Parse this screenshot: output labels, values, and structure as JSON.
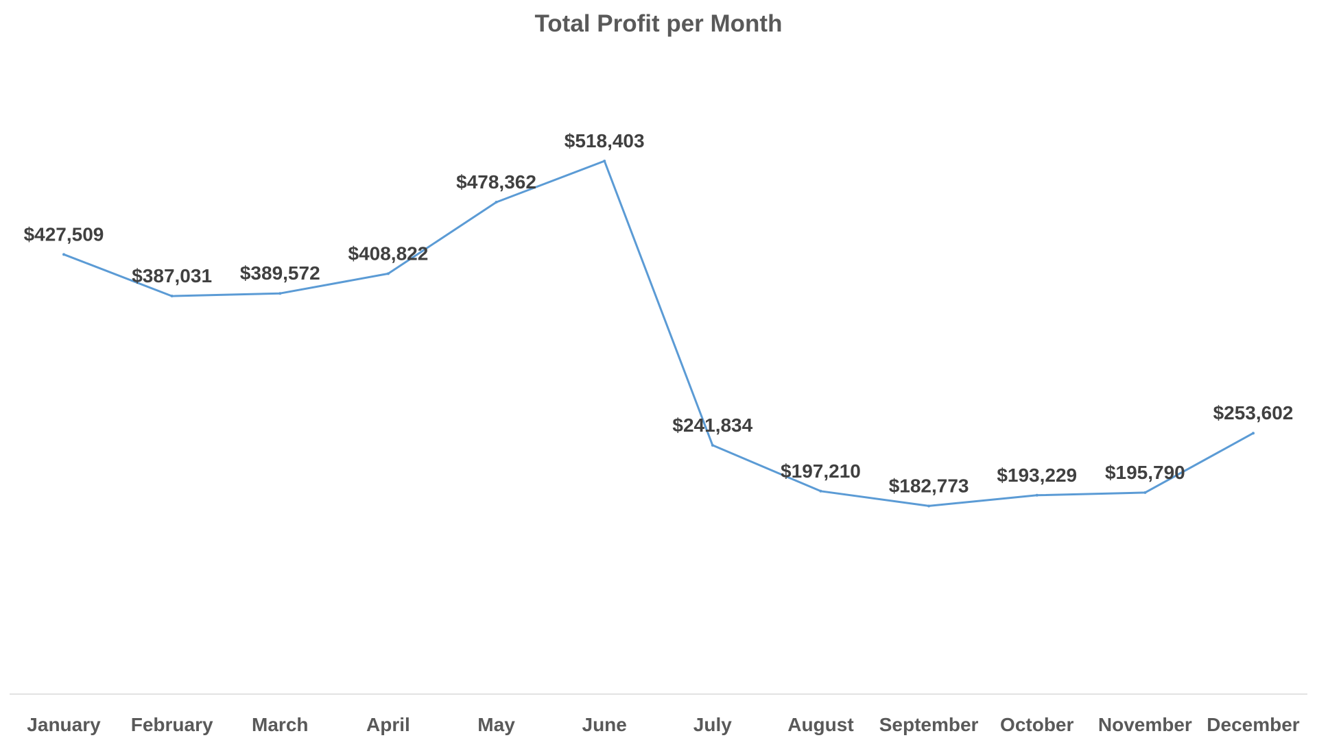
{
  "chart_data": {
    "type": "line",
    "title": "Total Profit per Month",
    "xlabel": "",
    "ylabel": "",
    "categories": [
      "January",
      "February",
      "March",
      "April",
      "May",
      "June",
      "July",
      "August",
      "September",
      "October",
      "November",
      "December"
    ],
    "series": [
      {
        "values": [
          427509,
          387031,
          389572,
          408822,
          478362,
          518403,
          241834,
          197210,
          182773,
          193229,
          195790,
          253602
        ],
        "data_labels": [
          "$427,509",
          "$387,031",
          "$389,572",
          "$408,822",
          "$478,362",
          "$518,403",
          "$241,834",
          "$197,210",
          "$182,773",
          "$193,229",
          "$195,790",
          "$253,602"
        ]
      }
    ],
    "ylim": [
      0,
      600000
    ],
    "grid": false,
    "legend": "none",
    "colors": {
      "line": "#5B9BD5",
      "axis": "#D9D9D9",
      "title": "#595959",
      "labels": "#404040",
      "ticks": "#595959"
    }
  }
}
